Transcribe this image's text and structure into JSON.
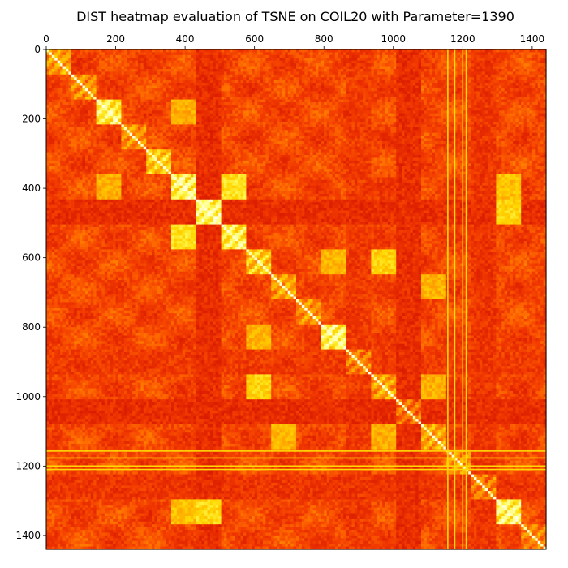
{
  "chart_data": {
    "type": "heatmap",
    "title": "DIST heatmap evaluation of TSNE on COIL20 with Parameter=1390",
    "xlabel": "",
    "ylabel": "",
    "x_axis_position": "top",
    "xlim": [
      0,
      1440
    ],
    "ylim": [
      1440,
      0
    ],
    "x_ticks": [
      0,
      200,
      400,
      600,
      800,
      1000,
      1200,
      1400
    ],
    "y_ticks": [
      0,
      200,
      400,
      600,
      800,
      1000,
      1200,
      1400
    ],
    "colormap": "hot",
    "colormap_colors": [
      "#8b0000",
      "#d91a00",
      "#f23a00",
      "#ff6e00",
      "#ffa500",
      "#ffd700",
      "#ffff66",
      "#ffffe0"
    ],
    "grid": false,
    "legend": "none",
    "n_objects": 20,
    "images_per_object": 72,
    "matrix_size": 1440,
    "blocks": [
      {
        "start": 0,
        "end": 72,
        "within": 0.58
      },
      {
        "start": 72,
        "end": 144,
        "within": 0.55
      },
      {
        "start": 144,
        "end": 216,
        "within": 0.82
      },
      {
        "start": 216,
        "end": 288,
        "within": 0.55
      },
      {
        "start": 288,
        "end": 360,
        "within": 0.7
      },
      {
        "start": 360,
        "end": 432,
        "within": 0.85
      },
      {
        "start": 432,
        "end": 504,
        "within": 0.88
      },
      {
        "start": 504,
        "end": 576,
        "within": 0.82
      },
      {
        "start": 576,
        "end": 648,
        "within": 0.7
      },
      {
        "start": 648,
        "end": 720,
        "within": 0.6
      },
      {
        "start": 720,
        "end": 792,
        "within": 0.55
      },
      {
        "start": 792,
        "end": 864,
        "within": 0.85
      },
      {
        "start": 864,
        "end": 936,
        "within": 0.5
      },
      {
        "start": 936,
        "end": 1008,
        "within": 0.6
      },
      {
        "start": 1008,
        "end": 1080,
        "within": 0.45
      },
      {
        "start": 1080,
        "end": 1152,
        "within": 0.6
      },
      {
        "start": 1152,
        "end": 1224,
        "within": 0.55
      },
      {
        "start": 1224,
        "end": 1296,
        "within": 0.5
      },
      {
        "start": 1296,
        "end": 1368,
        "within": 0.85
      },
      {
        "start": 1368,
        "end": 1440,
        "within": 0.5
      }
    ],
    "bright_cross_blocks": [
      {
        "rows": [
          360,
          432
        ],
        "cols": [
          504,
          576
        ],
        "value": 0.75
      },
      {
        "rows": [
          432,
          504
        ],
        "cols": [
          1296,
          1368
        ],
        "value": 0.72
      },
      {
        "rows": [
          576,
          648
        ],
        "cols": [
          936,
          1008
        ],
        "value": 0.7
      },
      {
        "rows": [
          576,
          648
        ],
        "cols": [
          792,
          864
        ],
        "value": 0.62
      },
      {
        "rows": [
          648,
          720
        ],
        "cols": [
          1080,
          1152
        ],
        "value": 0.62
      },
      {
        "rows": [
          360,
          432
        ],
        "cols": [
          1296,
          1368
        ],
        "value": 0.65
      },
      {
        "rows": [
          144,
          216
        ],
        "cols": [
          360,
          432
        ],
        "value": 0.6
      },
      {
        "rows": [
          936,
          1008
        ],
        "cols": [
          1080,
          1152
        ],
        "value": 0.6
      }
    ],
    "dark_bands": [
      {
        "start": 432,
        "end": 504,
        "value": 0.15
      },
      {
        "start": 864,
        "end": 936,
        "value": 0.2
      },
      {
        "start": 1008,
        "end": 1080,
        "value": 0.15
      },
      {
        "start": 1224,
        "end": 1296,
        "value": 0.18
      }
    ],
    "bright_lines": [
      1155,
      1175,
      1198,
      1208
    ],
    "diagonal_value": 1.0
  }
}
